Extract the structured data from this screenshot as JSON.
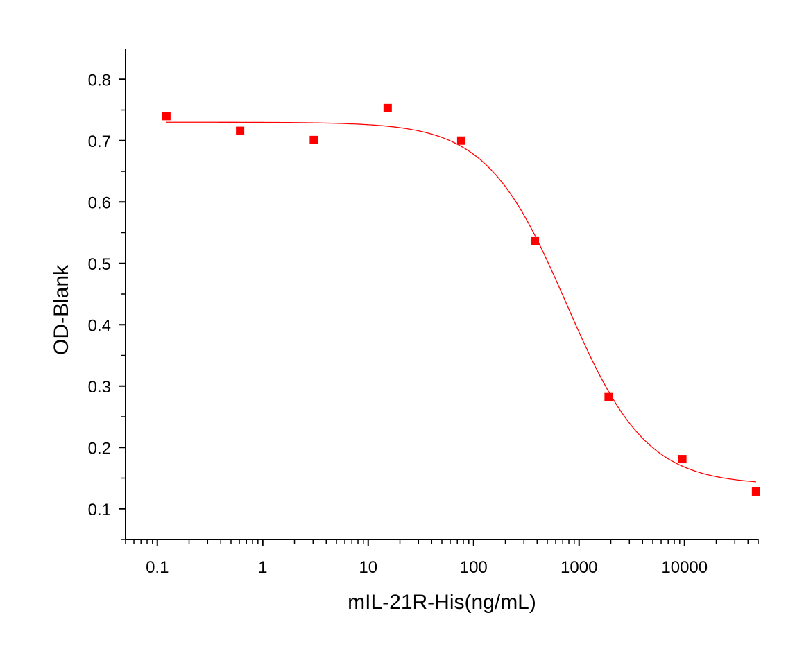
{
  "chart_data": {
    "type": "scatter",
    "title": "",
    "xlabel": "mIL-21R-His(ng/mL)",
    "ylabel": "OD-Blank",
    "x_scale": "log",
    "xlim": [
      0.05,
      50000
    ],
    "ylim": [
      0.05,
      0.85
    ],
    "grid": false,
    "legend": "none",
    "x_ticks": [
      0.1,
      1,
      10,
      100,
      1000,
      10000
    ],
    "x_tick_labels": [
      "0.1",
      "1",
      "10",
      "100",
      "1000",
      "10000"
    ],
    "y_ticks": [
      0.1,
      0.2,
      0.3,
      0.4,
      0.5,
      0.6,
      0.7,
      0.8
    ],
    "y_tick_labels": [
      "0.1",
      "0.2",
      "0.3",
      "0.4",
      "0.5",
      "0.6",
      "0.7",
      "0.8"
    ],
    "series": [
      {
        "type": "scatter",
        "marker": "square",
        "color": "#ff0000",
        "x": [
          0.122,
          0.61,
          3.05,
          15.3,
          76.3,
          381,
          1907,
          9537,
          47684
        ],
        "y": [
          0.74,
          0.716,
          0.701,
          0.753,
          0.7,
          0.536,
          0.282,
          0.181,
          0.128
        ]
      },
      {
        "type": "line",
        "fit": "four-parameter-logistic",
        "color": "#ff0000",
        "top": 0.73,
        "bottom": 0.139,
        "ec50": 758,
        "hill": 1.15,
        "x_range": [
          0.122,
          47684
        ]
      }
    ]
  }
}
